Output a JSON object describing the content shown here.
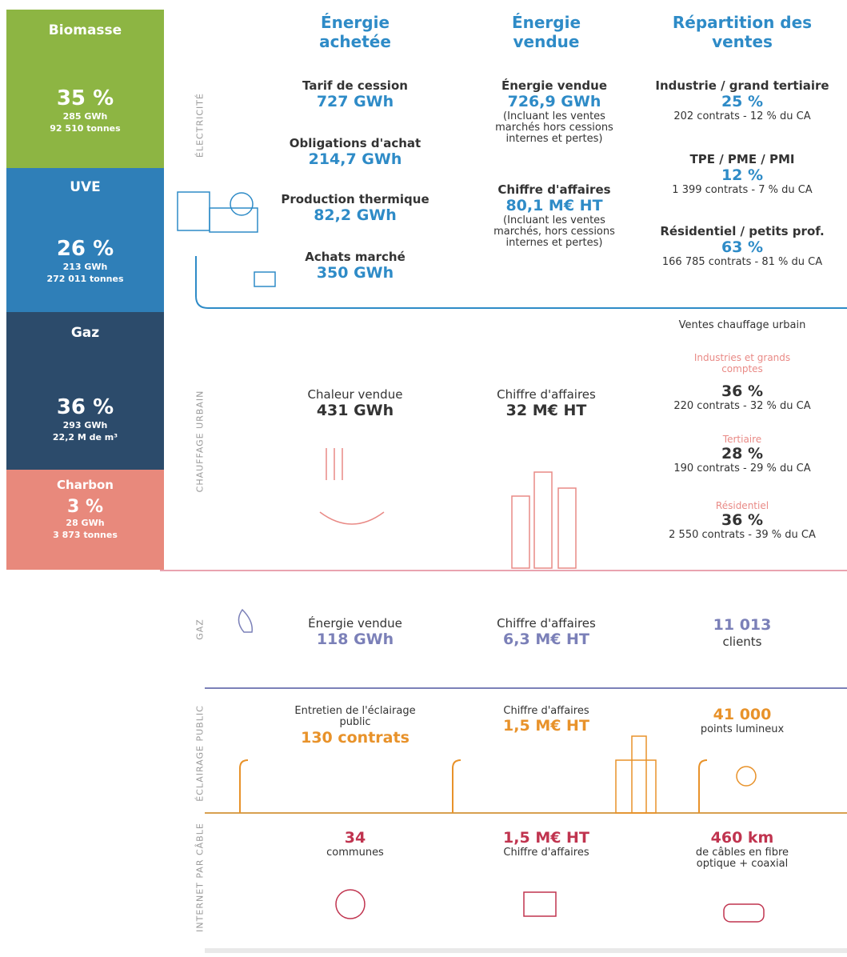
{
  "sidebar": [
    {
      "name": "Biomasse",
      "share": "35 %",
      "energy": "285 GWh",
      "quantity": "92 510 tonnes"
    },
    {
      "name": "UVE",
      "share": "26 %",
      "energy": "213 GWh",
      "quantity": "272 011 tonnes"
    },
    {
      "name": "Gaz",
      "share": "36 %",
      "energy": "293 GWh",
      "quantity": "22,2 M de m³"
    },
    {
      "name": "Charbon",
      "share": "3 %",
      "energy": "28 GWh",
      "quantity": "3 873 tonnes"
    }
  ],
  "headers": [
    "Énergie achetée",
    "Énergie vendue",
    "Répartition des ventes"
  ],
  "electricite": {
    "label": "ÉLECTRICITÉ",
    "achetee": [
      {
        "label": "Tarif de cession",
        "value": "727 GWh"
      },
      {
        "label": "Obligations d'achat",
        "value": "214,7 GWh"
      },
      {
        "label": "Production thermique",
        "value": "82,2 GWh"
      },
      {
        "label": "Achats marché",
        "value": "350 GWh"
      }
    ],
    "vendue": [
      {
        "label": "Énergie vendue",
        "value": "726,9 GWh",
        "note": "(Incluant les ventes marchés hors cessions internes et pertes)"
      },
      {
        "label": "Chiffre d'affaires",
        "value": "80,1 M€ HT",
        "note": "(Incluant les ventes marchés, hors cessions internes et pertes)"
      }
    ],
    "repartition": [
      {
        "label": "Industrie / grand tertiaire",
        "value": "25 %",
        "detail": "202 contrats - 12 % du CA"
      },
      {
        "label": "TPE / PME / PMI",
        "value": "12 %",
        "detail": "1 399 contrats - 7 % du CA"
      },
      {
        "label": "Résidentiel / petits prof.",
        "value": "63 %",
        "detail": "166 785 contrats - 81 % du CA"
      }
    ]
  },
  "chauffage": {
    "label": "CHAUFFAGE URBAIN",
    "achetee": {
      "label": "Chaleur vendue",
      "value": "431 GWh"
    },
    "vendue": {
      "label": "Chiffre d'affaires",
      "value": "32 M€ HT"
    },
    "repartition_title": "Ventes chauffage urbain",
    "repartition": [
      {
        "label": "Industries et grands comptes",
        "value": "36 %",
        "detail": "220 contrats - 32 % du CA"
      },
      {
        "label": "Tertiaire",
        "value": "28 %",
        "detail": "190 contrats - 29 % du CA"
      },
      {
        "label": "Résidentiel",
        "value": "36 %",
        "detail": "2 550 contrats - 39 % du CA"
      }
    ]
  },
  "gaz": {
    "label": "GAZ",
    "achetee": {
      "label": "Énergie vendue",
      "value": "118 GWh"
    },
    "vendue": {
      "label": "Chiffre d'affaires",
      "value": "6,3 M€ HT"
    },
    "repartition": {
      "value": "11 013",
      "label": "clients"
    }
  },
  "eclairage": {
    "label": "ÉCLAIRAGE PUBLIC",
    "achetee": {
      "label": "Entretien de l'éclairage public",
      "value": "130 contrats"
    },
    "vendue": {
      "label": "Chiffre d'affaires",
      "value": "1,5 M€ HT"
    },
    "repartition": {
      "value": "41 000",
      "label": "points lumineux"
    }
  },
  "internet": {
    "label": "INTERNET PAR CÂBLE",
    "achetee": {
      "value": "34",
      "label": "communes"
    },
    "vendue": {
      "value": "1,5 M€ HT",
      "label": "Chiffre d'affaires"
    },
    "repartition": {
      "value": "460 km",
      "label": "de câbles en fibre optique + coaxial"
    }
  }
}
